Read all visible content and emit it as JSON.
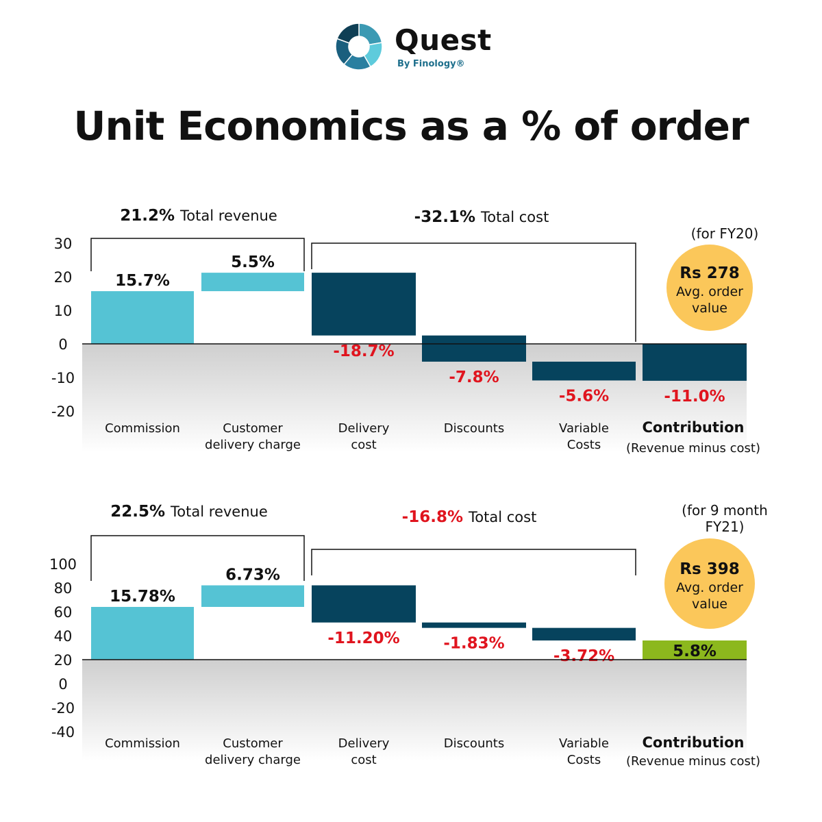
{
  "brand": {
    "name": "Quest",
    "sub": "By Finology®",
    "colors": [
      "#3c9ab3",
      "#5ecbdc",
      "#2a7fa0",
      "#1a5f7e",
      "#0f3f55"
    ]
  },
  "title": "Unit Economics as a % of order",
  "colors": {
    "revenue": "#55c3d4",
    "cost": "#06435d",
    "positive": "#8cb81d",
    "negative_text": "#e0141e",
    "badge": "#fbc75a"
  },
  "chart_data": [
    {
      "type": "bar",
      "subtype": "waterfall",
      "period": "(for FY20)",
      "categories": [
        "Commission",
        "Customer\ndelivery charge",
        "Delivery\ncost",
        "Discounts",
        "Variable\nCosts",
        "Contribution"
      ],
      "contribution_note": "(Revenue minus cost)",
      "y_ticks": [
        "30",
        "20",
        "10",
        "0",
        "-10",
        "-20"
      ],
      "ylim": [
        -20,
        30
      ],
      "bars": [
        {
          "start": 0,
          "end": 15.7,
          "label": "15.7%",
          "kind": "revenue"
        },
        {
          "start": 15.7,
          "end": 21.2,
          "label": "5.5%",
          "kind": "revenue"
        },
        {
          "start": 21.2,
          "end": 2.5,
          "label": "-18.7%",
          "kind": "cost"
        },
        {
          "start": 2.5,
          "end": -5.3,
          "label": "-7.8%",
          "kind": "cost"
        },
        {
          "start": -5.3,
          "end": -10.9,
          "label": "-5.6%",
          "kind": "cost"
        },
        {
          "start": 0,
          "end": -11.0,
          "label": "-11.0%",
          "kind": "cost"
        }
      ],
      "revenue_total": {
        "value": "21.2%",
        "text": "Total revenue",
        "negative": false
      },
      "cost_total": {
        "value": "-32.1%",
        "text": "Total cost",
        "negative": false
      },
      "aov": {
        "amount": "Rs 278",
        "line1": "Avg. order",
        "line2": "value"
      }
    },
    {
      "type": "bar",
      "subtype": "waterfall",
      "period": "(for 9 month\nFY21)",
      "categories": [
        "Commission",
        "Customer\ndelivery charge",
        "Delivery\ncost",
        "Discounts",
        "Variable\nCosts",
        "Contribution"
      ],
      "contribution_note": "(Revenue minus cost)",
      "y_ticks": [
        "100",
        "80",
        "60",
        "40",
        "20",
        "0",
        "-20",
        "-40"
      ],
      "ylim": [
        -40,
        100
      ],
      "bars": [
        {
          "start": 20,
          "end": 64,
          "label": "15.78%",
          "kind": "revenue"
        },
        {
          "start": 64,
          "end": 82,
          "label": "6.73%",
          "kind": "revenue"
        },
        {
          "start": 82,
          "end": 51,
          "label": "-11.20%",
          "kind": "cost"
        },
        {
          "start": 51,
          "end": 46.5,
          "label": "-1.83%",
          "kind": "cost"
        },
        {
          "start": 46.5,
          "end": 36,
          "label": "-3.72%",
          "kind": "cost"
        },
        {
          "start": 20,
          "end": 36,
          "label": "5.8%",
          "kind": "positive"
        }
      ],
      "revenue_total": {
        "value": "22.5%",
        "text": "Total revenue",
        "negative": false
      },
      "cost_total": {
        "value": "-16.8%",
        "text": "Total cost",
        "negative": true
      },
      "aov": {
        "amount": "Rs 398",
        "line1": "Avg. order",
        "line2": "value"
      }
    }
  ]
}
